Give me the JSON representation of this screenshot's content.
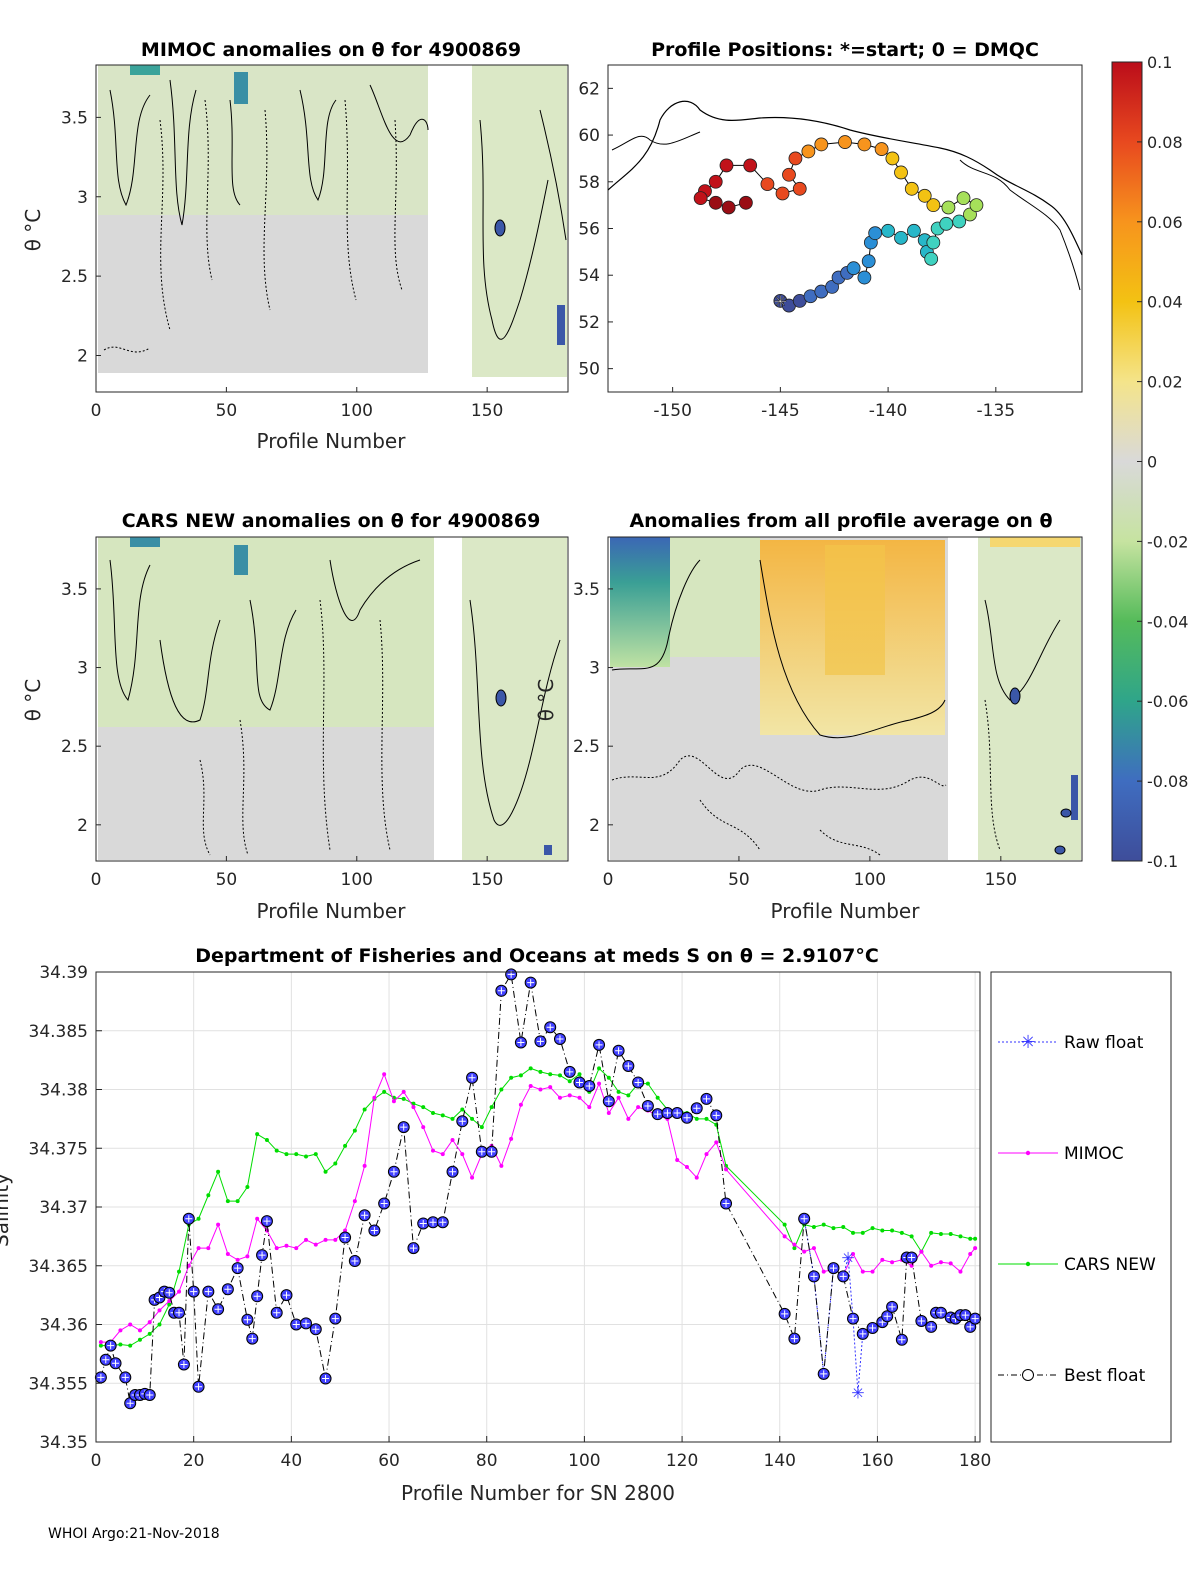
{
  "colors": {
    "grey_field": "#d9d9d9",
    "light_green": "#d8e8bf",
    "green": "#a9d99a",
    "teal": "#3aa39a",
    "blue": "#3b57a8",
    "yellow": "#f2d36b",
    "orange": "#f0a21a",
    "magenta": "#ff00ff",
    "lime": "#00dd00",
    "raw_blue": "#3333ff",
    "best_black": "#000000",
    "marker_blue": "#4040ff"
  },
  "footer": "WHOI Argo:21-Nov-2018",
  "chart_data": [
    {
      "id": "mimoc",
      "type": "heatmap",
      "title": "MIMOC anomalies on θ  for 4900869",
      "xlabel": "Profile Number",
      "ylabel": "θ °C",
      "xlim": [
        0,
        181
      ],
      "ylim": [
        1.77,
        3.83
      ],
      "xticks": [
        "0",
        "50",
        "100",
        "150"
      ],
      "yticks": [
        "2",
        "2.5",
        "3",
        "3.5"
      ]
    },
    {
      "id": "positions",
      "type": "scatter",
      "title": "Profile Positions: *=start; 0 = DMQC",
      "xlim": [
        -153,
        -131
      ],
      "ylim": [
        49,
        63
      ],
      "xticks": [
        "-150",
        "-145",
        "-140",
        "-135"
      ],
      "yticks": [
        "50",
        "52",
        "54",
        "56",
        "58",
        "60",
        "62"
      ],
      "track": [
        [
          -145,
          52.9
        ],
        [
          -144.6,
          52.7
        ],
        [
          -144.1,
          52.9
        ],
        [
          -143.6,
          53.1
        ],
        [
          -143.1,
          53.3
        ],
        [
          -142.6,
          53.5
        ],
        [
          -142.3,
          53.9
        ],
        [
          -141.9,
          54.1
        ],
        [
          -141.6,
          54.3
        ],
        [
          -141.1,
          53.9
        ],
        [
          -140.9,
          54.6
        ],
        [
          -140.8,
          55.4
        ],
        [
          -140.6,
          55.8
        ],
        [
          -140.0,
          55.9
        ],
        [
          -139.4,
          55.6
        ],
        [
          -138.8,
          55.9
        ],
        [
          -138.3,
          55.5
        ],
        [
          -138.2,
          55.0
        ],
        [
          -138.0,
          54.7
        ],
        [
          -137.9,
          55.4
        ],
        [
          -137.7,
          56.0
        ],
        [
          -137.3,
          56.2
        ],
        [
          -136.7,
          56.3
        ],
        [
          -136.2,
          56.6
        ],
        [
          -135.9,
          57.0
        ],
        [
          -136.5,
          57.3
        ],
        [
          -137.2,
          56.9
        ],
        [
          -137.9,
          57.0
        ],
        [
          -138.3,
          57.4
        ],
        [
          -138.9,
          57.7
        ],
        [
          -139.4,
          58.4
        ],
        [
          -139.8,
          59.0
        ],
        [
          -140.3,
          59.4
        ],
        [
          -141.1,
          59.6
        ],
        [
          -142.0,
          59.7
        ],
        [
          -143.1,
          59.6
        ],
        [
          -143.7,
          59.3
        ],
        [
          -144.3,
          59.0
        ],
        [
          -144.6,
          58.3
        ],
        [
          -144.1,
          57.7
        ],
        [
          -144.9,
          57.5
        ],
        [
          -145.6,
          57.9
        ],
        [
          -146.4,
          58.7
        ],
        [
          -147.5,
          58.7
        ],
        [
          -148.0,
          58.0
        ],
        [
          -148.5,
          57.6
        ],
        [
          -148.7,
          57.3
        ],
        [
          -148.0,
          57.1
        ],
        [
          -147.4,
          56.9
        ],
        [
          -146.6,
          57.1
        ]
      ],
      "colorbar": {
        "ticks": [
          "0.1",
          "0.08",
          "0.06",
          "0.04",
          "0.02",
          "0",
          "-0.02",
          "-0.04",
          "-0.06",
          "-0.08",
          "-0.1"
        ]
      }
    },
    {
      "id": "cars",
      "type": "heatmap",
      "title": "CARS NEW anomalies on θ for 4900869",
      "xlabel": "Profile Number",
      "ylabel": "θ °C",
      "xlim": [
        0,
        181
      ],
      "ylim": [
        1.77,
        3.83
      ],
      "xticks": [
        "0",
        "50",
        "100",
        "150"
      ],
      "yticks": [
        "2",
        "2.5",
        "3",
        "3.5"
      ]
    },
    {
      "id": "allavg",
      "type": "heatmap",
      "title": "Anomalies from all profile average on θ",
      "xlabel": "Profile Number",
      "ylabel": "θ °C",
      "xlim": [
        0,
        181
      ],
      "ylim": [
        1.77,
        3.83
      ],
      "xticks": [
        "0",
        "50",
        "100",
        "150"
      ],
      "yticks": [
        "2",
        "2.5",
        "3",
        "3.5"
      ]
    },
    {
      "id": "salinity",
      "type": "line",
      "title": "Department of Fisheries and Oceans at meds S on θ = 2.9107°C",
      "xlabel": "Profile Number for SN 2800",
      "ylabel": "Salinity",
      "xlim": [
        0,
        181
      ],
      "ylim": [
        34.35,
        34.39
      ],
      "xticks": [
        "0",
        "20",
        "40",
        "60",
        "80",
        "100",
        "120",
        "140",
        "160",
        "180"
      ],
      "yticks": [
        "34.35",
        "34.355",
        "34.36",
        "34.365",
        "34.37",
        "34.375",
        "34.38",
        "34.385",
        "34.39"
      ],
      "legend": [
        "Raw float",
        "MIMOC",
        "CARS NEW",
        "Best float"
      ],
      "series": [
        {
          "name": "Best float",
          "x": [
            1,
            2,
            3,
            4,
            6,
            7,
            8,
            9,
            10,
            11,
            12,
            13,
            14,
            15,
            16,
            17,
            18,
            19,
            20,
            21,
            23,
            25,
            27,
            29,
            31,
            32,
            33,
            34,
            35,
            37,
            39,
            41,
            43,
            45,
            47,
            49,
            51,
            53,
            55,
            57,
            59,
            61,
            63,
            65,
            67,
            69,
            71,
            73,
            75,
            77,
            79,
            81,
            83,
            85,
            87,
            89,
            91,
            93,
            95,
            97,
            99,
            101,
            103,
            105,
            107,
            109,
            111,
            113,
            115,
            117,
            119,
            121,
            123,
            125,
            127,
            129,
            141,
            143,
            145,
            147,
            149,
            151,
            153,
            155,
            157,
            159,
            161,
            162,
            163,
            165,
            166,
            167,
            169,
            171,
            172,
            173,
            175,
            176,
            177,
            178,
            179,
            180
          ],
          "values": [
            34.3555,
            34.357,
            34.3582,
            34.3567,
            34.3555,
            34.3533,
            34.354,
            34.354,
            34.3541,
            34.354,
            34.3621,
            34.3623,
            34.3628,
            34.3627,
            34.361,
            34.361,
            34.3566,
            34.369,
            34.3628,
            34.3547,
            34.3628,
            34.3613,
            34.363,
            34.3648,
            34.3604,
            34.3588,
            34.3624,
            34.3659,
            34.3688,
            34.361,
            34.3625,
            34.36,
            34.3601,
            34.3596,
            34.3554,
            34.3605,
            34.3674,
            34.3654,
            34.3693,
            34.368,
            34.3703,
            34.373,
            34.3768,
            34.3665,
            34.3686,
            34.3687,
            34.3687,
            34.373,
            34.3773,
            34.381,
            34.3747,
            34.3747,
            34.3884,
            34.3898,
            34.384,
            34.3891,
            34.3841,
            34.3853,
            34.3843,
            34.3815,
            34.3806,
            34.3803,
            34.3838,
            34.379,
            34.3833,
            34.382,
            34.3806,
            34.3786,
            34.3779,
            34.378,
            34.378,
            34.3776,
            34.3784,
            34.3792,
            34.3778,
            34.3703,
            34.3609,
            34.3588,
            34.369,
            34.3641,
            34.3558,
            34.3648,
            34.3641,
            34.3605,
            34.3592,
            34.3597,
            34.3602,
            34.3607,
            34.3615,
            34.3587,
            34.3657,
            34.3657,
            34.3603,
            34.3598,
            34.361,
            34.361,
            34.3606,
            34.3605,
            34.3608,
            34.3608,
            34.3598,
            34.3605
          ]
        },
        {
          "name": "Raw float",
          "x": [
            145,
            147,
            149,
            151,
            153,
            154,
            155,
            156,
            157
          ],
          "values": [
            34.369,
            34.3641,
            34.3558,
            34.3648,
            34.3641,
            34.3657,
            34.3605,
            34.3542,
            34.3592
          ]
        },
        {
          "name": "MIMOC",
          "x": [
            1,
            3,
            5,
            7,
            9,
            11,
            13,
            15,
            17,
            19,
            21,
            23,
            25,
            27,
            29,
            31,
            33,
            35,
            37,
            39,
            41,
            43,
            45,
            47,
            49,
            51,
            53,
            55,
            57,
            59,
            61,
            63,
            65,
            67,
            69,
            71,
            73,
            75,
            77,
            79,
            81,
            83,
            85,
            87,
            89,
            91,
            93,
            95,
            97,
            99,
            101,
            103,
            105,
            107,
            109,
            111,
            113,
            115,
            117,
            119,
            121,
            123,
            125,
            127,
            129,
            141,
            143,
            145,
            147,
            149,
            151,
            153,
            155,
            157,
            159,
            161,
            163,
            165,
            167,
            169,
            171,
            173,
            175,
            177,
            179,
            180
          ],
          "values": [
            34.3585,
            34.3585,
            34.3595,
            34.36,
            34.3595,
            34.3602,
            34.3612,
            34.362,
            34.3628,
            34.365,
            34.3665,
            34.3665,
            34.3685,
            34.366,
            34.3655,
            34.3658,
            34.369,
            34.368,
            34.3665,
            34.3667,
            34.3665,
            34.3672,
            34.3668,
            34.3672,
            34.3672,
            34.368,
            34.3705,
            34.3735,
            34.3793,
            34.3813,
            34.379,
            34.3798,
            34.3785,
            34.3768,
            34.3748,
            34.3745,
            34.3757,
            34.3745,
            34.3725,
            34.3745,
            34.3752,
            34.3735,
            34.3758,
            34.3787,
            34.3803,
            34.38,
            34.3802,
            34.3793,
            34.3795,
            34.3793,
            34.3785,
            34.3805,
            34.378,
            34.3793,
            34.3775,
            34.3785,
            34.3782,
            34.3778,
            34.3775,
            34.374,
            34.3734,
            34.3725,
            34.3745,
            34.3755,
            34.3732,
            34.3675,
            34.3668,
            34.3662,
            34.3665,
            34.3645,
            34.3647,
            34.3642,
            34.366,
            34.3645,
            34.3645,
            34.3655,
            34.3653,
            34.3655,
            34.365,
            34.3662,
            34.365,
            34.3653,
            34.3652,
            34.3645,
            34.366,
            34.3665
          ]
        },
        {
          "name": "CARS NEW",
          "x": [
            1,
            3,
            5,
            7,
            9,
            11,
            13,
            15,
            17,
            19,
            21,
            23,
            25,
            27,
            29,
            31,
            33,
            35,
            37,
            39,
            41,
            43,
            45,
            47,
            49,
            51,
            53,
            55,
            57,
            59,
            61,
            63,
            65,
            67,
            69,
            71,
            73,
            75,
            77,
            79,
            81,
            83,
            85,
            87,
            89,
            91,
            93,
            95,
            97,
            99,
            101,
            103,
            105,
            107,
            109,
            111,
            113,
            115,
            117,
            119,
            121,
            123,
            125,
            127,
            129,
            141,
            143,
            145,
            147,
            149,
            151,
            153,
            155,
            157,
            159,
            161,
            163,
            165,
            167,
            169,
            171,
            173,
            175,
            177,
            179,
            180
          ],
          "values": [
            34.3582,
            34.3582,
            34.3583,
            34.3582,
            34.3587,
            34.3592,
            34.36,
            34.3617,
            34.3645,
            34.3685,
            34.369,
            34.371,
            34.373,
            34.3705,
            34.3705,
            34.3717,
            34.3762,
            34.3757,
            34.3748,
            34.3745,
            34.3745,
            34.3743,
            34.3745,
            34.373,
            34.3737,
            34.3752,
            34.3765,
            34.3783,
            34.3792,
            34.3798,
            34.3793,
            34.3792,
            34.3788,
            34.3785,
            34.378,
            34.3778,
            34.3775,
            34.3783,
            34.3775,
            34.3768,
            34.3785,
            34.38,
            34.381,
            34.3812,
            34.3818,
            34.3815,
            34.3813,
            34.3812,
            34.3807,
            34.3813,
            34.3798,
            34.3818,
            34.381,
            34.3798,
            34.3795,
            34.3805,
            34.3805,
            34.3793,
            34.3783,
            34.3782,
            34.378,
            34.3775,
            34.3775,
            34.377,
            34.3735,
            34.3685,
            34.3665,
            34.3685,
            34.3683,
            34.3685,
            34.3682,
            34.3683,
            34.3678,
            34.3678,
            34.3682,
            34.368,
            34.368,
            34.3678,
            34.3675,
            34.3662,
            34.3678,
            34.3677,
            34.3677,
            34.3675,
            34.3673,
            34.3673
          ]
        }
      ]
    }
  ]
}
